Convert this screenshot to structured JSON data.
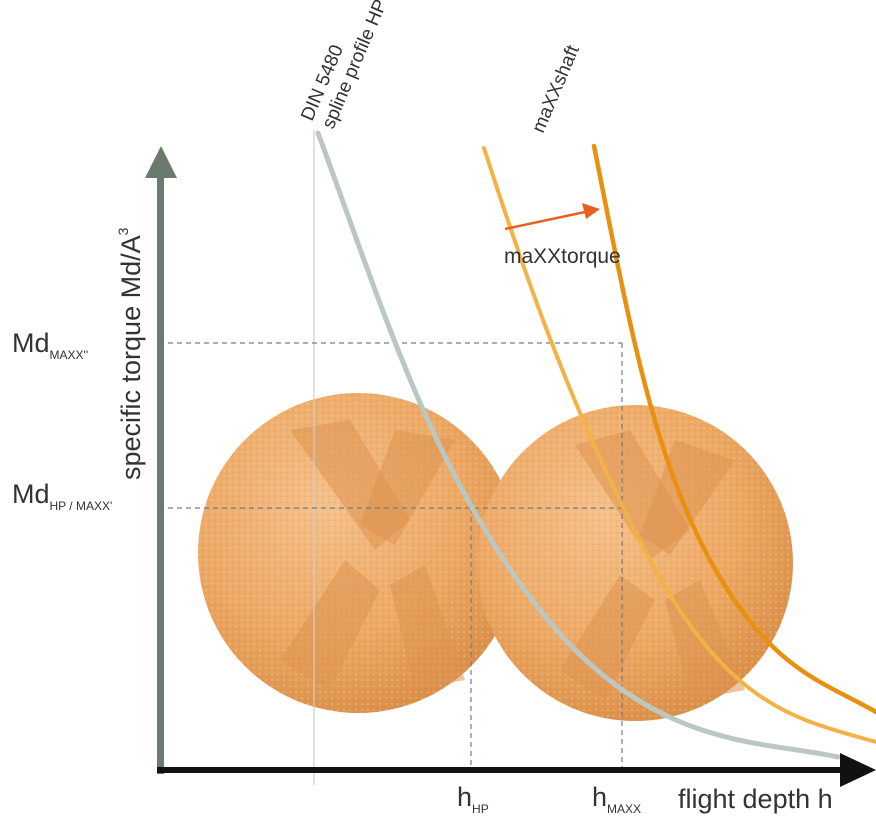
{
  "chart_data": {
    "type": "line",
    "title": "",
    "xlabel": "flight depth h",
    "ylabel": "specific torque Md/A",
    "ylabel_superscript": "3",
    "grid": false,
    "legend": "none",
    "series": [
      {
        "name_line1": "DIN 5480",
        "name_line2": "spline profile HP",
        "color": "#bcc7c2"
      },
      {
        "name": "maXXshaft",
        "color": "#f2b246"
      },
      {
        "name": "",
        "color": "#e8900f"
      }
    ],
    "x_ticks": [
      {
        "label": "h",
        "sub": "HP"
      },
      {
        "label": "h",
        "sub": "MAXX"
      }
    ],
    "y_ticks": [
      {
        "label": "Md",
        "sub": "MAXX''"
      },
      {
        "label": "Md",
        "sub": "HP / MAXX'"
      }
    ],
    "annotations": {
      "shift_label": "maXXtorque",
      "arrow_color": "#e8601e"
    },
    "colors": {
      "axis": "#6b7a6e",
      "axis_x": "#111111",
      "background_image": "orange-spheres"
    }
  }
}
